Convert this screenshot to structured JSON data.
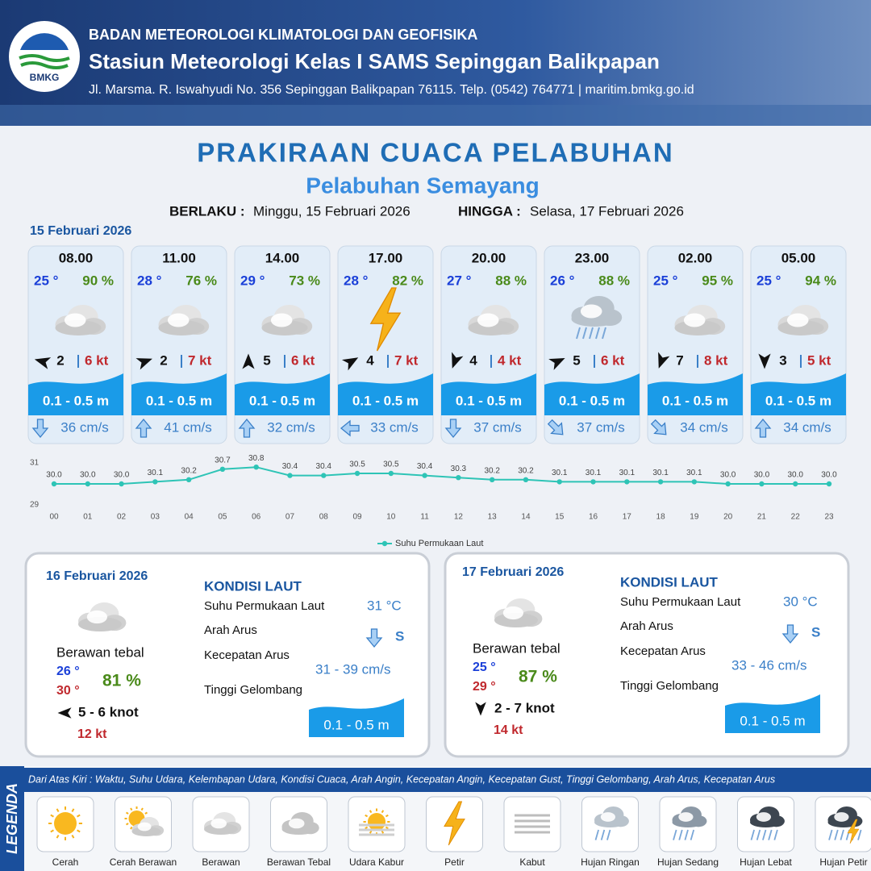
{
  "header": {
    "logo": "BMKG",
    "org": "BADAN METEOROLOGI KLIMATOLOGI DAN GEOFISIKA",
    "station": "Stasiun Meteorologi Kelas I SAMS Sepinggan Balikpapan",
    "address": "Jl. Marsma. R. Iswahyudi No. 356 Sepinggan Balikpapan 76115. Telp. (0542) 764771 | maritim.bmkg.go.id"
  },
  "title": "PRAKIRAAN CUACA PELABUHAN",
  "subtitle": "Pelabuhan Semayang",
  "validity": {
    "from_label": "BERLAKU :",
    "from": "Minggu, 15 Februari 2026",
    "to_label": "HINGGA :",
    "to": "Selasa, 17 Februari 2026"
  },
  "day1": {
    "date": "15 Februari 2026",
    "cards": [
      {
        "time": "08.00",
        "temp": "25 °",
        "humidity": "90 %",
        "wind": "2",
        "gust": "6 kt",
        "wave": "0.1 - 0.5 m",
        "current": "36 cm/s"
      },
      {
        "time": "11.00",
        "temp": "28 °",
        "humidity": "76 %",
        "wind": "2",
        "gust": "7 kt",
        "wave": "0.1 - 0.5 m",
        "current": "41 cm/s"
      },
      {
        "time": "14.00",
        "temp": "29 °",
        "humidity": "73 %",
        "wind": "5",
        "gust": "6 kt",
        "wave": "0.1 - 0.5 m",
        "current": "32 cm/s"
      },
      {
        "time": "17.00",
        "temp": "28 °",
        "humidity": "82 %",
        "wind": "4",
        "gust": "7 kt",
        "wave": "0.1 - 0.5 m",
        "current": "33 cm/s"
      },
      {
        "time": "20.00",
        "temp": "27 °",
        "humidity": "88 %",
        "wind": "4",
        "gust": "4 kt",
        "wave": "0.1 - 0.5 m",
        "current": "37 cm/s"
      },
      {
        "time": "23.00",
        "temp": "26 °",
        "humidity": "88 %",
        "wind": "5",
        "gust": "6 kt",
        "wave": "0.1 - 0.5 m",
        "current": "37 cm/s"
      },
      {
        "time": "02.00",
        "temp": "25 °",
        "humidity": "95 %",
        "wind": "7",
        "gust": "8 kt",
        "wave": "0.1 - 0.5 m",
        "current": "34 cm/s"
      },
      {
        "time": "05.00",
        "temp": "25 °",
        "humidity": "94 %",
        "wind": "3",
        "gust": "5 kt",
        "wave": "0.1 - 0.5 m",
        "current": "34 cm/s"
      }
    ]
  },
  "chart_data": {
    "type": "line",
    "categories": [
      "00",
      "01",
      "02",
      "03",
      "04",
      "05",
      "06",
      "07",
      "08",
      "09",
      "10",
      "11",
      "12",
      "13",
      "14",
      "15",
      "16",
      "17",
      "18",
      "19",
      "20",
      "21",
      "22",
      "23"
    ],
    "series": [
      {
        "name": "Suhu Permukaan Laut",
        "color": "#2ec4b6",
        "values": [
          30.0,
          30.0,
          30.0,
          30.1,
          30.2,
          30.7,
          30.8,
          30.4,
          30.4,
          30.5,
          30.5,
          30.4,
          30.3,
          30.2,
          30.2,
          30.1,
          30.1,
          30.1,
          30.1,
          30.1,
          30.0,
          30.0,
          30.0,
          30.0
        ],
        "value_labels": [
          "30.0",
          "30.0",
          "30.0",
          "30.1",
          "30.2",
          "30.7",
          "30.8",
          "30.4",
          "30.4",
          "30.5",
          "30.5",
          "30.4",
          "30.3",
          "30.2",
          "30.2",
          "30.1",
          "30.1",
          "30.1",
          "30.1",
          "30.1",
          "30.0",
          "30.0",
          "30.0",
          "30.0"
        ]
      }
    ],
    "ylim": [
      29,
      31
    ],
    "yticks": [
      31,
      29
    ]
  },
  "days": [
    {
      "date": "16 Februari 2026",
      "condition": "Berawan tebal",
      "temp_min": "26 °",
      "temp_max": "30 °",
      "humidity": "81 %",
      "wind": "5 - 6 knot",
      "gust": "12 kt",
      "sea_title": "KONDISI LAUT",
      "sst_label": "Suhu Permukaan Laut",
      "sst": "31 °C",
      "dir_label": "Arah Arus",
      "dir": "S",
      "speed_label": "Kecepatan Arus",
      "speed": "31 - 39 cm/s",
      "wave_label": "Tinggi Gelombang",
      "wave": "0.1 - 0.5 m"
    },
    {
      "date": "17 Februari 2026",
      "condition": "Berawan tebal",
      "temp_min": "25 °",
      "temp_max": "29 °",
      "humidity": "87 %",
      "wind": "2 - 7 knot",
      "gust": "14 kt",
      "sea_title": "KONDISI LAUT",
      "sst_label": "Suhu Permukaan Laut",
      "sst": "30 °C",
      "dir_label": "Arah Arus",
      "dir": "S",
      "speed_label": "Kecepatan Arus",
      "speed": "33 - 46 cm/s",
      "wave_label": "Tinggi Gelombang",
      "wave": "0.1 - 0.5 m"
    }
  ],
  "legend": {
    "title": "LEGENDA",
    "description": "Dari Atas Kiri : Waktu, Suhu Udara, Kelembapan Udara, Kondisi Cuaca, Arah Angin, Kecepatan Angin, Kecepatan Gust, Tinggi Gelombang, Arah Arus, Kecepatan Arus",
    "items": [
      "Cerah",
      "Cerah Berawan",
      "Berawan",
      "Berawan Tebal",
      "Udara Kabur",
      "Petir",
      "Kabut",
      "Hujan Ringan",
      "Hujan Sedang",
      "Hujan Lebat",
      "Hujan Petir"
    ]
  }
}
